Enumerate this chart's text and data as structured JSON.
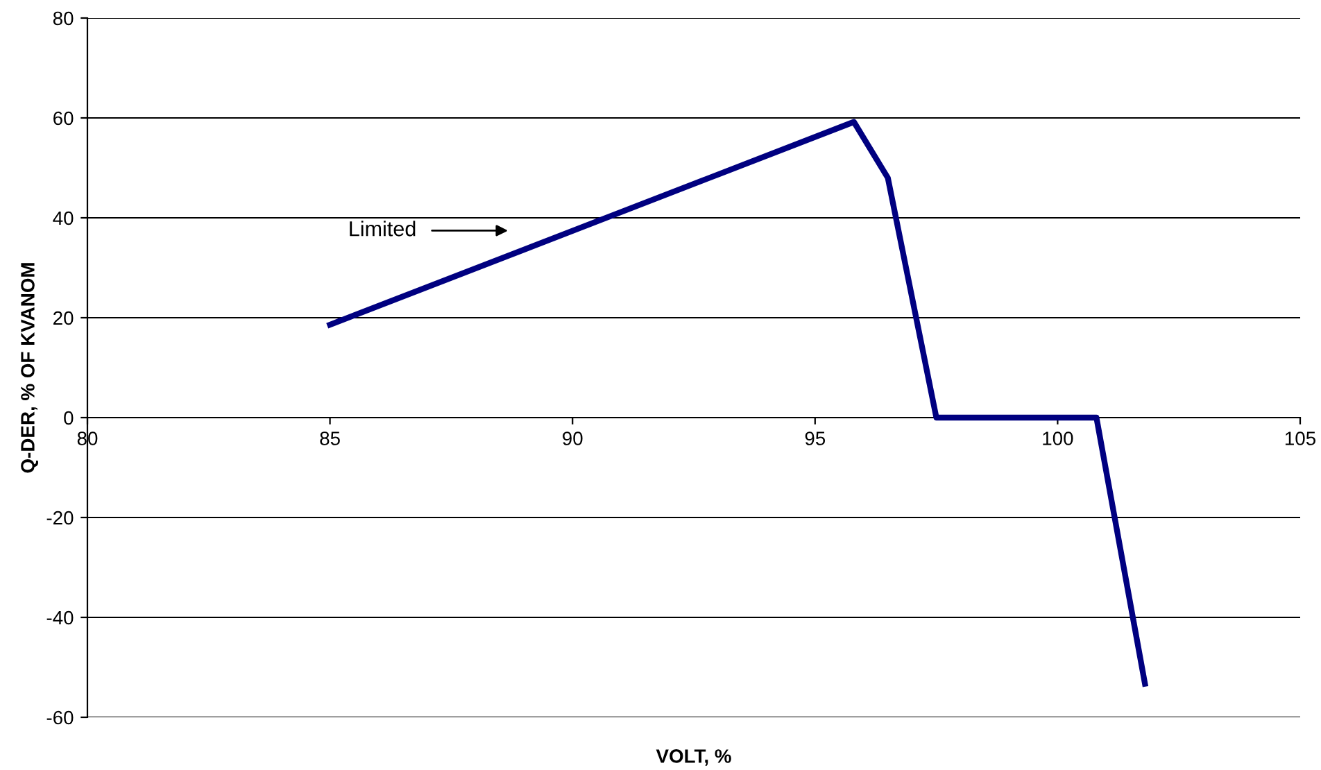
{
  "chart_data": {
    "type": "line",
    "xlabel": "VOLT, %",
    "ylabel": "Q-DER, % OF KVANOM",
    "x": [
      85,
      95.8,
      96.5,
      97.5,
      100.8,
      101.8
    ],
    "series": [
      {
        "color": "#000080",
        "values": [
          18.6,
          59.2,
          48,
          0,
          0,
          -53.3
        ]
      }
    ],
    "xlim": [
      80,
      105
    ],
    "xticks": [
      80,
      85,
      90,
      95,
      100,
      105
    ],
    "ylim": [
      -60,
      80
    ],
    "yticks": [
      -60,
      -40,
      -20,
      0,
      20,
      40,
      60,
      80
    ],
    "grid": "y",
    "marker": "none",
    "line_style": "solid",
    "annotations": [
      "Limited"
    ]
  }
}
